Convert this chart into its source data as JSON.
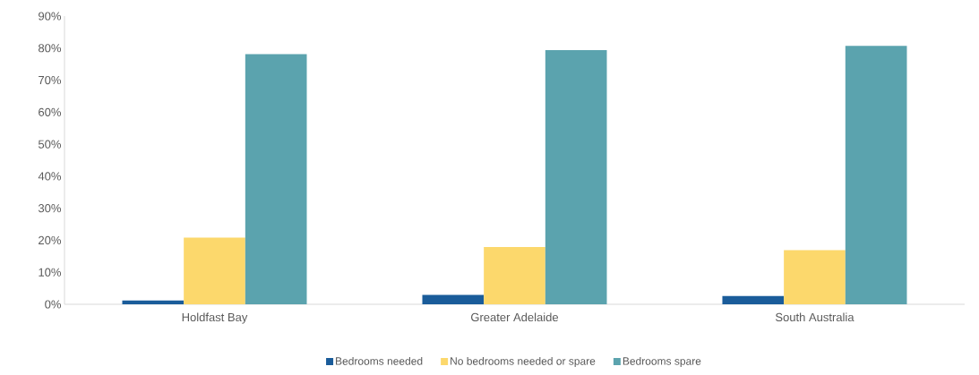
{
  "chart_data": {
    "type": "bar",
    "categories": [
      "Holdfast Bay",
      "Greater Adelaide",
      "South Australia"
    ],
    "series": [
      {
        "name": "Bedrooms needed",
        "color": "#1a5c9a",
        "values": [
          1.2,
          2.9,
          2.6
        ]
      },
      {
        "name": "No bedrooms needed or spare",
        "color": "#fcd86c",
        "values": [
          20.8,
          17.9,
          16.9
        ]
      },
      {
        "name": "Bedrooms spare",
        "color": "#5ba3ae",
        "values": [
          78.1,
          79.4,
          80.7
        ]
      }
    ],
    "ylim": [
      0,
      90
    ],
    "yticks": [
      {
        "value": 0,
        "label": "0%"
      },
      {
        "value": 10,
        "label": "10%"
      },
      {
        "value": 20,
        "label": "20%"
      },
      {
        "value": 30,
        "label": "30%"
      },
      {
        "value": 40,
        "label": "40%"
      },
      {
        "value": 50,
        "label": "50%"
      },
      {
        "value": 60,
        "label": "60%"
      },
      {
        "value": 70,
        "label": "70%"
      },
      {
        "value": 80,
        "label": "80%"
      },
      {
        "value": 90,
        "label": "90%"
      }
    ],
    "grid": false,
    "legend": "bottom"
  }
}
